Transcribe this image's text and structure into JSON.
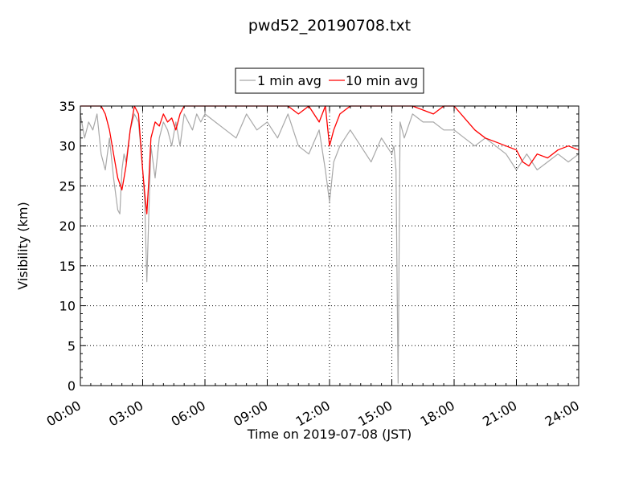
{
  "chart_data": {
    "type": "line",
    "title": "pwd52_20190708.txt",
    "xlabel": "Time on 2019-07-08 (JST)",
    "ylabel": "Visibility (km)",
    "xlim": [
      "00:00",
      "24:00"
    ],
    "ylim": [
      0,
      35
    ],
    "x_tick_labels": [
      "00:00",
      "03:00",
      "06:00",
      "09:00",
      "12:00",
      "15:00",
      "18:00",
      "21:00",
      "24:00"
    ],
    "y_tick_labels": [
      "0",
      "5",
      "10",
      "15",
      "20",
      "25",
      "30",
      "35"
    ],
    "grid": true,
    "legend_position": "top-center",
    "series": [
      {
        "name": "1 min avg",
        "color": "#a8a8a8",
        "x": [
          "00:00",
          "00:12",
          "00:24",
          "00:36",
          "00:48",
          "01:00",
          "01:12",
          "01:24",
          "01:36",
          "01:48",
          "01:54",
          "02:00",
          "02:06",
          "02:12",
          "02:24",
          "02:36",
          "02:48",
          "03:00",
          "03:06",
          "03:12",
          "03:18",
          "03:24",
          "03:36",
          "03:48",
          "04:00",
          "04:12",
          "04:24",
          "04:36",
          "04:48",
          "05:00",
          "05:12",
          "05:24",
          "05:36",
          "05:48",
          "06:00",
          "06:30",
          "07:00",
          "07:30",
          "08:00",
          "08:30",
          "09:00",
          "09:30",
          "10:00",
          "10:30",
          "11:00",
          "11:30",
          "11:48",
          "12:00",
          "12:12",
          "12:30",
          "13:00",
          "13:30",
          "14:00",
          "14:30",
          "15:00",
          "15:06",
          "15:12",
          "15:18",
          "15:24",
          "15:36",
          "16:00",
          "16:30",
          "17:00",
          "17:30",
          "18:00",
          "18:30",
          "19:00",
          "19:30",
          "20:00",
          "20:30",
          "21:00",
          "21:30",
          "22:00",
          "22:30",
          "23:00",
          "23:30",
          "24:00"
        ],
        "y": [
          34,
          31,
          33,
          32,
          34,
          29,
          27,
          31,
          26,
          22,
          21.5,
          27,
          29,
          28,
          32,
          34,
          33,
          27,
          23,
          13,
          22,
          30,
          26,
          31,
          33,
          32,
          30,
          33,
          30,
          34,
          33,
          32,
          34,
          33,
          34,
          33,
          32,
          31,
          34,
          32,
          33,
          31,
          34,
          30,
          29,
          32,
          27,
          23,
          28,
          30,
          32,
          30,
          28,
          31,
          29,
          30,
          27,
          0.3,
          33,
          31,
          34,
          33,
          33,
          32,
          32,
          31,
          30,
          31,
          30,
          29,
          27,
          29,
          27,
          28,
          29,
          28,
          29
        ]
      },
      {
        "name": "10 min avg",
        "color": "#ff0000",
        "x": [
          "00:00",
          "00:30",
          "01:00",
          "01:12",
          "01:24",
          "01:36",
          "01:48",
          "02:00",
          "02:06",
          "02:12",
          "02:24",
          "02:36",
          "02:48",
          "03:00",
          "03:06",
          "03:12",
          "03:18",
          "03:24",
          "03:36",
          "03:48",
          "04:00",
          "04:12",
          "04:24",
          "04:36",
          "04:48",
          "05:00",
          "05:12",
          "05:30",
          "06:00",
          "07:00",
          "08:00",
          "09:00",
          "10:00",
          "10:30",
          "11:00",
          "11:30",
          "11:48",
          "12:00",
          "12:12",
          "12:30",
          "13:00",
          "14:00",
          "15:00",
          "15:30",
          "16:00",
          "17:00",
          "17:30",
          "18:00",
          "18:30",
          "19:00",
          "19:30",
          "20:00",
          "20:30",
          "21:00",
          "21:18",
          "21:36",
          "22:00",
          "22:30",
          "23:00",
          "23:30",
          "24:00"
        ],
        "y": [
          35,
          35,
          35,
          34,
          32,
          29,
          26,
          24.5,
          26,
          27.5,
          32,
          35,
          34,
          27,
          24,
          21.5,
          26,
          31,
          33,
          32.5,
          34,
          33,
          33.5,
          32,
          34,
          35,
          35,
          35,
          35,
          35,
          35,
          35,
          35,
          34,
          35,
          33,
          35,
          30,
          32,
          34,
          35,
          35,
          35,
          35,
          35,
          34,
          35,
          35,
          33.5,
          32,
          31,
          30.5,
          30,
          29.5,
          28,
          27.5,
          29,
          28.5,
          29.5,
          30,
          29.5
        ]
      }
    ]
  }
}
